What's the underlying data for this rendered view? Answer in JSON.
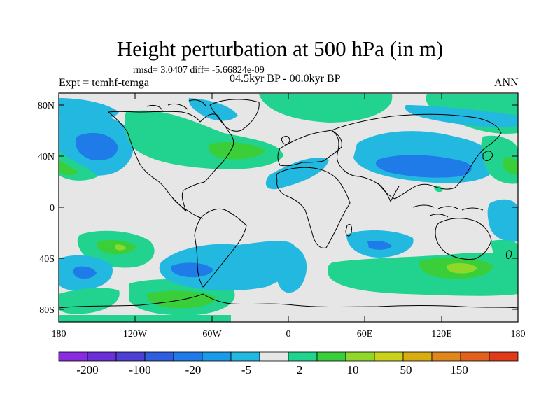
{
  "figure": {
    "title": "Height perturbation at 500 hPa (in m)",
    "stats": "rmsd= 3.0407 diff= -5.66824e-09",
    "expt": "Expt = temhf-temga",
    "period": "04.5kyr BP - 00.0kyr BP",
    "season": "ANN"
  },
  "axes": {
    "lat_labels": [
      "80N",
      "40N",
      "0",
      "40S",
      "80S"
    ],
    "lon_labels": [
      "180",
      "120W",
      "60W",
      "0",
      "60E",
      "120E",
      "180"
    ]
  },
  "colorbar": {
    "labels": [
      "-200",
      "-100",
      "-20",
      "-5",
      "2",
      "10",
      "50",
      "150"
    ],
    "colors": [
      "#8a2be2",
      "#6a2fd8",
      "#4b3fd4",
      "#2f5de0",
      "#1e7be8",
      "#1a9ae8",
      "#22b8e0",
      "#e6e6e6",
      "#22d38f",
      "#3acf3a",
      "#8fd82a",
      "#c9d21a",
      "#d8ad12",
      "#e0861a",
      "#e0601c",
      "#e03a1a"
    ]
  },
  "map_data": {
    "projection": "cylindrical-equidistant",
    "lon_range": [
      -180,
      180
    ],
    "lat_range": [
      -90,
      90
    ],
    "background_color": "#e6e6e6",
    "features": [
      "filled contours of 500 hPa height difference",
      "coastlines"
    ]
  }
}
